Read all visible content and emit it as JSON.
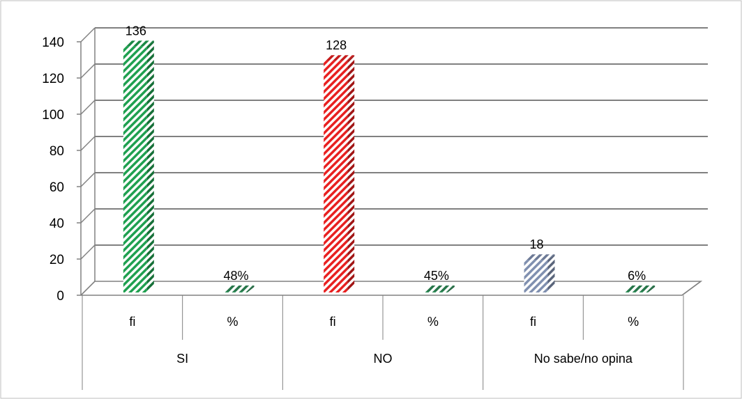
{
  "chart_data": {
    "type": "bar",
    "title": "",
    "xlabel": "",
    "ylabel": "",
    "ylim": [
      0,
      140
    ],
    "y_ticks": [
      0,
      20,
      40,
      60,
      80,
      100,
      120,
      140
    ],
    "grid": true,
    "three_d": true,
    "groups": [
      {
        "name": "SI",
        "bars": [
          {
            "category": "fi",
            "value": 136,
            "label": "136",
            "color": "#1fa050",
            "pattern": "diagonal-stripes"
          },
          {
            "category": "%",
            "value": 0.48,
            "label": "48%",
            "color": "#2e8b57",
            "pattern": "diagonal-stripes"
          }
        ]
      },
      {
        "name": "NO",
        "bars": [
          {
            "category": "fi",
            "value": 128,
            "label": "128",
            "color": "#e82020",
            "pattern": "diagonal-stripes"
          },
          {
            "category": "%",
            "value": 0.45,
            "label": "45%",
            "color": "#2e8b57",
            "pattern": "diagonal-stripes"
          }
        ]
      },
      {
        "name": "No sabe/no opina",
        "bars": [
          {
            "category": "fi",
            "value": 18,
            "label": "18",
            "color": "#8090b0",
            "pattern": "diagonal-stripes"
          },
          {
            "category": "%",
            "value": 0.06,
            "label": "6%",
            "color": "#2e8b57",
            "pattern": "diagonal-stripes"
          }
        ]
      }
    ]
  }
}
